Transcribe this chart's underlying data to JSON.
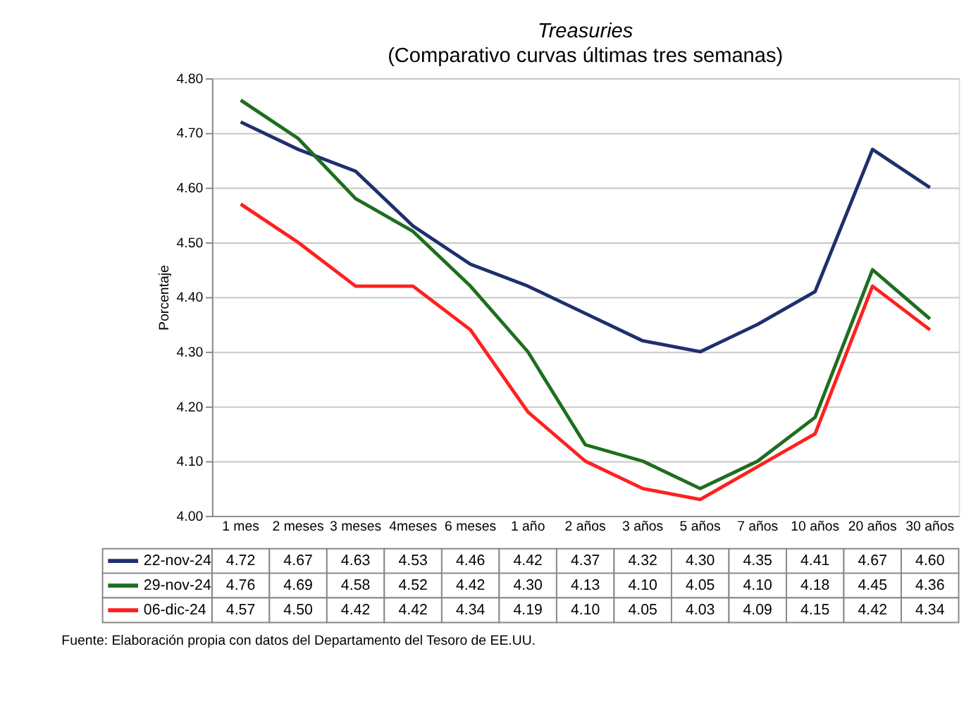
{
  "chart_data": {
    "type": "line",
    "title": "Treasuries",
    "subtitle": "(Comparativo curvas últimas tres semanas)",
    "ylabel": "Porcentaje",
    "categories": [
      "1 mes",
      "2 meses",
      "3 meses",
      "4meses",
      "6 meses",
      "1 año",
      "2 años",
      "3 años",
      "5 años",
      "7 años",
      "10 años",
      "20 años",
      "30 años"
    ],
    "series": [
      {
        "name": "22-nov-24",
        "color": "#1f2f6e",
        "values": [
          4.72,
          4.67,
          4.63,
          4.53,
          4.46,
          4.42,
          4.37,
          4.32,
          4.3,
          4.35,
          4.41,
          4.67,
          4.6
        ],
        "value_labels": [
          "4.72",
          "4.67",
          "4.63",
          "4.53",
          "4.46",
          "4.42",
          "4.37",
          "4.32",
          "4.30",
          "4.35",
          "4.41",
          "4.67",
          "4.60"
        ]
      },
      {
        "name": "29-nov-24",
        "color": "#1e6e1e",
        "values": [
          4.76,
          4.69,
          4.58,
          4.52,
          4.42,
          4.3,
          4.13,
          4.1,
          4.05,
          4.1,
          4.18,
          4.45,
          4.36
        ],
        "value_labels": [
          "4.76",
          "4.69",
          "4.58",
          "4.52",
          "4.42",
          "4.30",
          "4.13",
          "4.10",
          "4.05",
          "4.10",
          "4.18",
          "4.45",
          "4.36"
        ]
      },
      {
        "name": "06-dic-24",
        "color": "#ff2020",
        "values": [
          4.57,
          4.5,
          4.42,
          4.42,
          4.34,
          4.19,
          4.1,
          4.05,
          4.03,
          4.09,
          4.15,
          4.42,
          4.34
        ],
        "value_labels": [
          "4.57",
          "4.50",
          "4.42",
          "4.42",
          "4.34",
          "4.19",
          "4.10",
          "4.05",
          "4.03",
          "4.09",
          "4.15",
          "4.42",
          "4.34"
        ]
      }
    ],
    "ylim": [
      4.0,
      4.8
    ],
    "yticks": [
      {
        "value": 4.0,
        "label": "4.00"
      },
      {
        "value": 4.1,
        "label": "4.10"
      },
      {
        "value": 4.2,
        "label": "4.20"
      },
      {
        "value": 4.3,
        "label": "4.30"
      },
      {
        "value": 4.4,
        "label": "4.40"
      },
      {
        "value": 4.5,
        "label": "4.50"
      },
      {
        "value": 4.6,
        "label": "4.60"
      },
      {
        "value": 4.7,
        "label": "4.70"
      },
      {
        "value": 4.8,
        "label": "4.80"
      }
    ],
    "grid": "y",
    "legend": "bottom",
    "marker": "none",
    "line_style": "solid",
    "annotations": [
      "Fuente: Elaboración propia con datos del Departamento del Tesoro de EE.UU."
    ]
  }
}
